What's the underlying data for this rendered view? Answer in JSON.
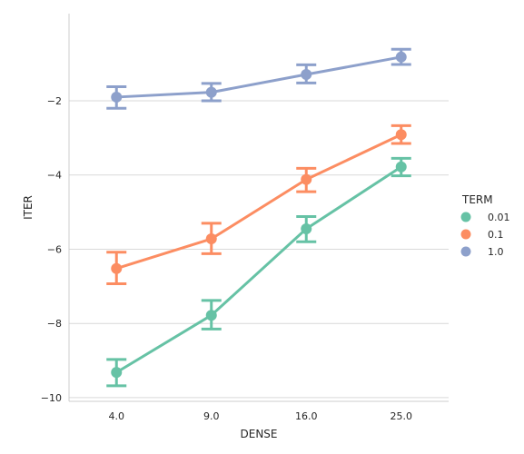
{
  "chart_data": {
    "type": "line",
    "title": "",
    "xlabel": "DENSE",
    "ylabel": "ITER",
    "categories": [
      "4.0",
      "9.0",
      "16.0",
      "25.0"
    ],
    "yticks": [
      -10,
      -8,
      -6,
      -4,
      -2
    ],
    "ylim": [
      -10.1,
      0.35
    ],
    "grid": "horizontal",
    "legend": {
      "title": "TERM",
      "placement": "right"
    },
    "series": [
      {
        "name": "0.01",
        "color": "#66c2a5",
        "values": [
          -9.32,
          -7.78,
          -5.45,
          -3.78
        ],
        "err_low": [
          -9.68,
          -8.15,
          -5.8,
          -4.02
        ],
        "err_high": [
          -8.97,
          -7.38,
          -5.12,
          -3.55
        ]
      },
      {
        "name": "0.1",
        "color": "#fc8d62",
        "values": [
          -6.52,
          -5.72,
          -4.12,
          -2.91
        ],
        "err_low": [
          -6.93,
          -6.12,
          -4.45,
          -3.15
        ],
        "err_high": [
          -6.08,
          -5.3,
          -3.82,
          -2.67
        ]
      },
      {
        "name": "1.0",
        "color": "#8da0cb",
        "values": [
          -1.9,
          -1.77,
          -1.29,
          -0.82
        ],
        "err_low": [
          -2.2,
          -2.0,
          -1.52,
          -1.02
        ],
        "err_high": [
          -1.62,
          -1.53,
          -1.03,
          -0.61
        ]
      }
    ]
  }
}
